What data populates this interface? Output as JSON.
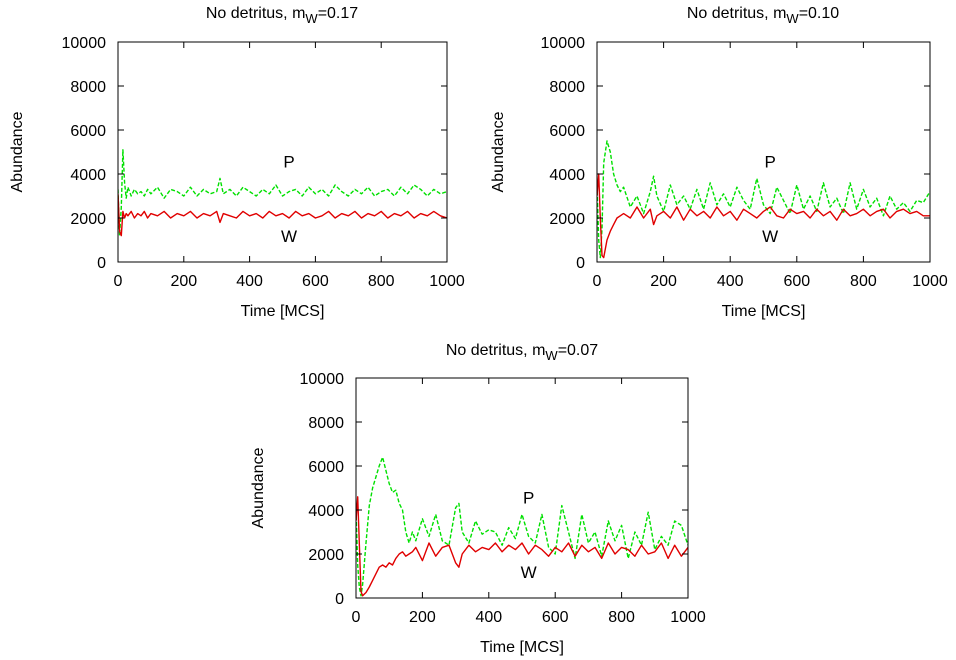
{
  "chart_data": [
    {
      "type": "line",
      "title_main": "No detritus,  m",
      "title_sub": "W",
      "title_val": "=0.17",
      "xlabel": "Time [MCS]",
      "ylabel": "Abundance",
      "xlim": [
        0,
        1000
      ],
      "ylim": [
        0,
        10000
      ],
      "xticks": [
        0,
        200,
        400,
        600,
        800,
        1000
      ],
      "yticks": [
        0,
        2000,
        4000,
        6000,
        8000,
        10000
      ],
      "annotations": [
        {
          "text": "P",
          "x": 520,
          "y": 4300
        },
        {
          "text": "W",
          "x": 520,
          "y": 900
        }
      ],
      "series": [
        {
          "label": "P",
          "color": "#00e000",
          "dashed": true,
          "x": [
            0,
            5,
            10,
            15,
            20,
            25,
            30,
            40,
            50,
            60,
            70,
            80,
            90,
            100,
            120,
            140,
            160,
            180,
            200,
            220,
            240,
            260,
            280,
            300,
            310,
            320,
            340,
            360,
            380,
            400,
            420,
            440,
            460,
            480,
            500,
            520,
            540,
            560,
            580,
            600,
            620,
            640,
            660,
            680,
            700,
            720,
            740,
            760,
            780,
            800,
            820,
            840,
            860,
            880,
            900,
            920,
            940,
            960,
            980,
            1000
          ],
          "y": [
            3300,
            1200,
            2500,
            5100,
            3600,
            2900,
            3400,
            3000,
            3300,
            3100,
            3200,
            3000,
            3300,
            3100,
            3400,
            2900,
            3300,
            3200,
            3000,
            3400,
            3000,
            3300,
            3100,
            3200,
            3800,
            3100,
            3300,
            3000,
            3400,
            3200,
            3000,
            3300,
            3100,
            3500,
            3000,
            3200,
            3300,
            3000,
            3400,
            3100,
            3300,
            3000,
            3500,
            3200,
            3000,
            3300,
            3100,
            3400,
            3000,
            3200,
            3300,
            3000,
            3400,
            3100,
            3500,
            3300,
            3000,
            3300,
            3100,
            3200
          ]
        },
        {
          "label": "W",
          "color": "#e00000",
          "dashed": false,
          "x": [
            0,
            5,
            10,
            15,
            20,
            25,
            30,
            40,
            50,
            60,
            70,
            80,
            90,
            100,
            120,
            140,
            160,
            180,
            200,
            220,
            240,
            260,
            280,
            300,
            310,
            320,
            340,
            360,
            380,
            400,
            420,
            440,
            460,
            480,
            500,
            520,
            540,
            560,
            580,
            600,
            620,
            640,
            660,
            680,
            700,
            720,
            740,
            760,
            780,
            800,
            820,
            840,
            860,
            880,
            900,
            920,
            940,
            960,
            980,
            1000
          ],
          "y": [
            3100,
            1400,
            1200,
            2300,
            2000,
            2200,
            2100,
            2300,
            2000,
            2200,
            2100,
            2300,
            2000,
            2200,
            2100,
            2300,
            2000,
            2200,
            2100,
            2300,
            2000,
            2200,
            2100,
            2300,
            1800,
            2200,
            2100,
            2000,
            2300,
            2100,
            2200,
            2000,
            2300,
            2100,
            2200,
            2000,
            2300,
            2100,
            2200,
            2000,
            2100,
            2300,
            2000,
            2200,
            2100,
            2300,
            2000,
            2200,
            2100,
            2300,
            2000,
            2200,
            2100,
            2300,
            2000,
            2200,
            2100,
            2300,
            2100,
            2000
          ]
        }
      ]
    },
    {
      "type": "line",
      "title_main": "No detritus,   m",
      "title_sub": "W",
      "title_val": "=0.10",
      "xlabel": "Time [MCS]",
      "ylabel": "Abundance",
      "xlim": [
        0,
        1000
      ],
      "ylim": [
        0,
        10000
      ],
      "xticks": [
        0,
        200,
        400,
        600,
        800,
        1000
      ],
      "yticks": [
        0,
        2000,
        4000,
        6000,
        8000,
        10000
      ],
      "annotations": [
        {
          "text": "P",
          "x": 520,
          "y": 4300
        },
        {
          "text": "W",
          "x": 520,
          "y": 900
        }
      ],
      "series": [
        {
          "label": "P",
          "color": "#00e000",
          "dashed": true,
          "x": [
            0,
            5,
            10,
            15,
            20,
            30,
            40,
            50,
            60,
            70,
            80,
            100,
            120,
            140,
            160,
            170,
            180,
            200,
            220,
            240,
            260,
            280,
            300,
            320,
            340,
            360,
            380,
            400,
            420,
            440,
            460,
            480,
            500,
            520,
            540,
            560,
            580,
            600,
            620,
            640,
            660,
            680,
            700,
            720,
            740,
            760,
            780,
            800,
            820,
            840,
            860,
            880,
            900,
            920,
            940,
            960,
            980,
            1000
          ],
          "y": [
            3500,
            1000,
            200,
            1500,
            4500,
            5500,
            5000,
            4000,
            3500,
            3200,
            3400,
            2500,
            3000,
            2200,
            3200,
            3900,
            3000,
            2300,
            3500,
            2600,
            3000,
            2400,
            3300,
            2400,
            3600,
            2600,
            3100,
            2500,
            3400,
            2800,
            2400,
            3800,
            2600,
            2200,
            3400,
            2800,
            2200,
            3500,
            2400,
            3000,
            2300,
            3600,
            2500,
            2900,
            2200,
            3600,
            2400,
            3300,
            2500,
            2900,
            2100,
            3000,
            2400,
            2700,
            2300,
            2800,
            2700,
            3200
          ]
        },
        {
          "label": "W",
          "color": "#e00000",
          "dashed": false,
          "x": [
            0,
            5,
            10,
            15,
            20,
            30,
            40,
            50,
            60,
            70,
            80,
            100,
            120,
            140,
            160,
            170,
            180,
            200,
            220,
            240,
            260,
            280,
            300,
            320,
            340,
            360,
            380,
            400,
            420,
            440,
            460,
            480,
            500,
            520,
            540,
            560,
            580,
            600,
            620,
            640,
            660,
            680,
            700,
            720,
            740,
            760,
            780,
            800,
            820,
            840,
            860,
            880,
            900,
            920,
            940,
            960,
            980,
            1000
          ],
          "y": [
            3000,
            4000,
            2000,
            300,
            200,
            1000,
            1400,
            1700,
            2000,
            2100,
            2200,
            2000,
            2500,
            2000,
            2400,
            1700,
            2100,
            2300,
            2000,
            2500,
            1900,
            2400,
            2100,
            2300,
            2000,
            2500,
            2100,
            2300,
            1900,
            2400,
            2200,
            2000,
            2300,
            2500,
            2100,
            2000,
            2400,
            2200,
            2300,
            2000,
            2400,
            2100,
            2300,
            1900,
            2400,
            2100,
            2200,
            2400,
            2100,
            2300,
            2400,
            2000,
            2300,
            2400,
            2200,
            2300,
            2100,
            2100
          ]
        }
      ]
    },
    {
      "type": "line",
      "title_main": "No detritus,  m",
      "title_sub": "W",
      "title_val": "=0.07",
      "xlabel": "Time [MCS]",
      "ylabel": "Abundance",
      "xlim": [
        0,
        1000
      ],
      "ylim": [
        0,
        10000
      ],
      "xticks": [
        0,
        200,
        400,
        600,
        800,
        1000
      ],
      "yticks": [
        0,
        2000,
        4000,
        6000,
        8000,
        10000
      ],
      "annotations": [
        {
          "text": "P",
          "x": 520,
          "y": 4300
        },
        {
          "text": "W",
          "x": 520,
          "y": 900
        }
      ],
      "series": [
        {
          "label": "P",
          "color": "#00e000",
          "dashed": true,
          "x": [
            0,
            5,
            10,
            15,
            20,
            30,
            40,
            50,
            60,
            70,
            80,
            90,
            100,
            110,
            120,
            130,
            140,
            150,
            160,
            170,
            180,
            200,
            220,
            240,
            260,
            280,
            300,
            310,
            320,
            340,
            360,
            380,
            400,
            420,
            440,
            460,
            480,
            500,
            520,
            540,
            560,
            580,
            600,
            620,
            640,
            660,
            680,
            700,
            720,
            740,
            760,
            780,
            800,
            820,
            840,
            860,
            880,
            900,
            920,
            940,
            960,
            980,
            1000
          ],
          "y": [
            4000,
            1500,
            500,
            100,
            600,
            2500,
            4200,
            5000,
            5500,
            6000,
            6400,
            5800,
            5200,
            4800,
            4900,
            4300,
            4000,
            3000,
            2500,
            3000,
            2600,
            3600,
            2800,
            3800,
            2600,
            2400,
            4100,
            4300,
            3000,
            2500,
            3500,
            2900,
            3100,
            3000,
            2400,
            3200,
            2700,
            3800,
            2800,
            2500,
            3800,
            2300,
            2000,
            4200,
            3000,
            1800,
            3800,
            2500,
            3000,
            1900,
            3500,
            2600,
            3300,
            1800,
            3000,
            2400,
            3900,
            2200,
            2800,
            2400,
            3500,
            3300,
            2400
          ]
        },
        {
          "label": "W",
          "color": "#e00000",
          "dashed": false,
          "x": [
            0,
            5,
            10,
            15,
            20,
            30,
            40,
            50,
            60,
            70,
            80,
            90,
            100,
            110,
            120,
            130,
            140,
            150,
            160,
            170,
            180,
            200,
            220,
            240,
            260,
            280,
            300,
            310,
            320,
            340,
            360,
            380,
            400,
            420,
            440,
            460,
            480,
            500,
            520,
            540,
            560,
            580,
            600,
            620,
            640,
            660,
            680,
            700,
            720,
            740,
            760,
            780,
            800,
            820,
            840,
            860,
            880,
            900,
            920,
            940,
            960,
            980,
            1000
          ],
          "y": [
            3500,
            4600,
            2500,
            300,
            100,
            250,
            500,
            800,
            1100,
            1400,
            1500,
            1400,
            1600,
            1500,
            1800,
            2000,
            2100,
            1900,
            2000,
            2100,
            2300,
            1700,
            2500,
            1900,
            2300,
            2400,
            1600,
            1400,
            2000,
            2400,
            2100,
            2300,
            2200,
            2500,
            2100,
            2400,
            2200,
            2500,
            2000,
            2400,
            2200,
            1900,
            2300,
            2100,
            2500,
            1900,
            2400,
            2100,
            2300,
            1800,
            2500,
            2000,
            2300,
            2200,
            1900,
            2400,
            2000,
            2100,
            2500,
            1800,
            2400,
            1900,
            2300
          ]
        }
      ]
    }
  ]
}
